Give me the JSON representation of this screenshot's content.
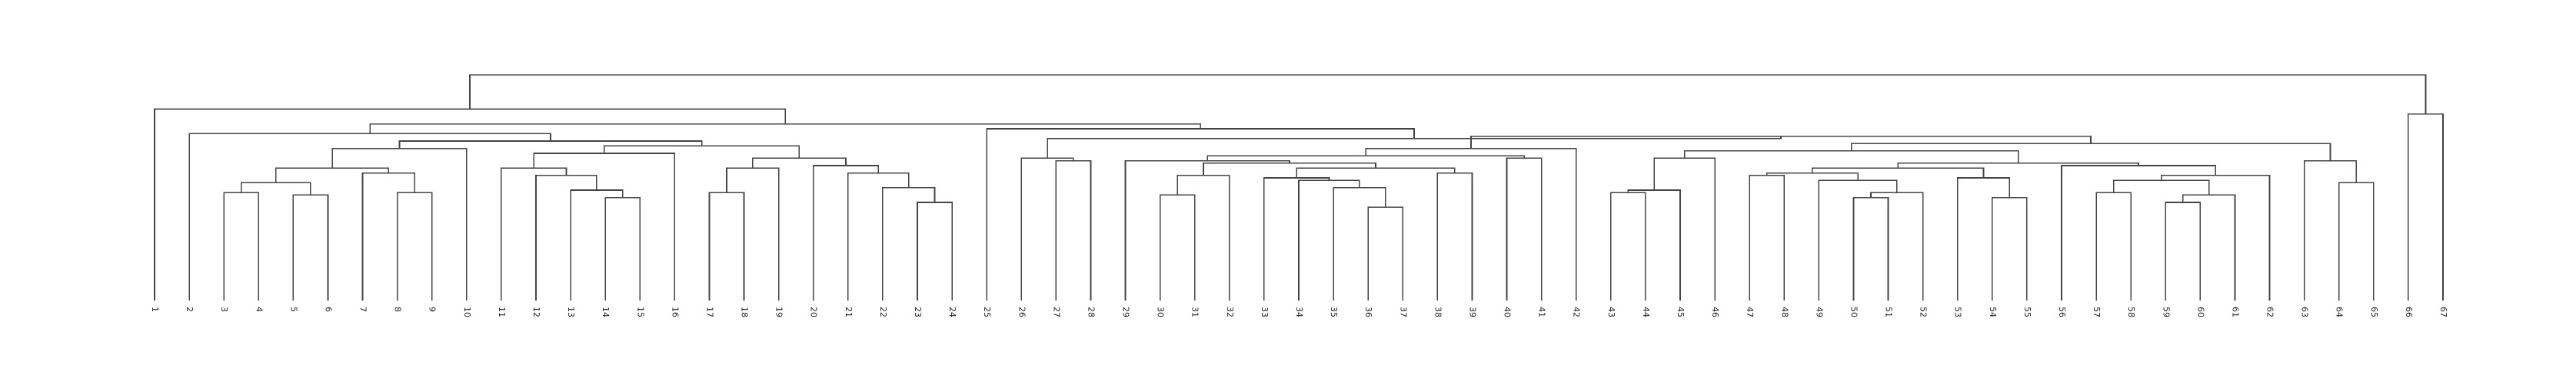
{
  "chart_data": {
    "type": "dendrogram",
    "title": "",
    "xlabel": "",
    "ylabel": "",
    "axis_visible": false,
    "grid": false,
    "leaf_order": [
      "1",
      "2",
      "3",
      "4",
      "5",
      "6",
      "7",
      "8",
      "9",
      "10",
      "11",
      "12",
      "13",
      "14",
      "15",
      "16",
      "17",
      "18",
      "19",
      "20",
      "21",
      "22",
      "23",
      "24",
      "25",
      "26",
      "27",
      "28",
      "29",
      "30",
      "31",
      "32",
      "33",
      "34",
      "35",
      "36",
      "37",
      "38",
      "39",
      "40",
      "41",
      "42",
      "43",
      "44",
      "45",
      "46",
      "47",
      "48",
      "49",
      "50",
      "51",
      "52",
      "53",
      "54",
      "55",
      "56",
      "57",
      "58",
      "59",
      "60",
      "61",
      "62",
      "63",
      "64",
      "65",
      "66",
      "67"
    ],
    "ylim": [
      0,
      100
    ],
    "merges": [
      {
        "a": "L5",
        "b": "L6",
        "h": 43
      },
      {
        "a": "L3",
        "b": "L4",
        "h": 44
      },
      {
        "a": "M1",
        "b": "M2",
        "h": 48
      },
      {
        "a": "L8",
        "b": "L9",
        "h": 44
      },
      {
        "a": "L7",
        "b": "M4",
        "h": 52
      },
      {
        "a": "M3",
        "b": "M5",
        "h": 54
      },
      {
        "a": "M6",
        "b": "L10",
        "h": 62
      },
      {
        "a": "L14",
        "b": "L15",
        "h": 42
      },
      {
        "a": "L13",
        "b": "M8",
        "h": 45
      },
      {
        "a": "L12",
        "b": "M9",
        "h": 51
      },
      {
        "a": "L11",
        "b": "M10",
        "h": 54
      },
      {
        "a": "M11",
        "b": "L16",
        "h": 60
      },
      {
        "a": "L17",
        "b": "L18",
        "h": 44
      },
      {
        "a": "M13",
        "b": "L19",
        "h": 54
      },
      {
        "a": "L23",
        "b": "L24",
        "h": 40
      },
      {
        "a": "L22",
        "b": "M15",
        "h": 46
      },
      {
        "a": "L21",
        "b": "M16",
        "h": 52
      },
      {
        "a": "L20",
        "b": "M17",
        "h": 55
      },
      {
        "a": "M14",
        "b": "M18",
        "h": 58
      },
      {
        "a": "M12",
        "b": "M19",
        "h": 63
      },
      {
        "a": "M7",
        "b": "M20",
        "h": 65
      },
      {
        "a": "M21",
        "b": "M22_dummy",
        "h": 0
      },
      {
        "a": "L36",
        "b": "L37",
        "h": 38
      },
      {
        "a": "L35",
        "b": "M23",
        "h": 46
      },
      {
        "a": "L34",
        "b": "M24",
        "h": 49
      },
      {
        "a": "L33",
        "b": "M25",
        "h": 50
      },
      {
        "a": "L30",
        "b": "L31",
        "h": 43
      },
      {
        "a": "M27",
        "b": "L32",
        "h": 51
      },
      {
        "a": "L38",
        "b": "L39",
        "h": 52
      },
      {
        "a": "M26",
        "b": "M29",
        "h": 54
      },
      {
        "a": "M28",
        "b": "M30",
        "h": 56
      },
      {
        "a": "L29",
        "b": "M31",
        "h": 57
      },
      {
        "a": "L40",
        "b": "L41",
        "h": 58
      },
      {
        "a": "M32",
        "b": "M33",
        "h": 59
      },
      {
        "a": "M34",
        "b": "L42",
        "h": 62
      },
      {
        "a": "L27",
        "b": "L28",
        "h": 57
      },
      {
        "a": "L26",
        "b": "M36",
        "h": 58
      },
      {
        "a": "L43",
        "b": "L44",
        "h": 44
      },
      {
        "a": "M38",
        "b": "L45",
        "h": 45
      },
      {
        "a": "M39",
        "b": "L46",
        "h": 58
      },
      {
        "a": "L50",
        "b": "L51",
        "h": 42
      },
      {
        "a": "M41",
        "b": "L52",
        "h": 44
      },
      {
        "a": "L49",
        "b": "M42",
        "h": 49
      },
      {
        "a": "L47",
        "b": "L48",
        "h": 51
      },
      {
        "a": "M44",
        "b": "M43",
        "h": 52
      },
      {
        "a": "L54",
        "b": "L55",
        "h": 42
      },
      {
        "a": "L53",
        "b": "M46",
        "h": 50
      },
      {
        "a": "M45",
        "b": "M47",
        "h": 54
      },
      {
        "a": "L59",
        "b": "L60",
        "h": 40
      },
      {
        "a": "M49",
        "b": "L61",
        "h": 43
      },
      {
        "a": "L57",
        "b": "L58",
        "h": 44
      },
      {
        "a": "M51",
        "b": "M50",
        "h": 49
      },
      {
        "a": "M52",
        "b": "L62",
        "h": 51
      },
      {
        "a": "L56",
        "b": "M53",
        "h": 55
      },
      {
        "a": "M48",
        "b": "M54",
        "h": 56
      },
      {
        "a": "M40",
        "b": "M55",
        "h": 61
      },
      {
        "a": "L64",
        "b": "L65",
        "h": 48
      },
      {
        "a": "L63",
        "b": "M57",
        "h": 57
      },
      {
        "a": "M56",
        "b": "M58",
        "h": 64
      },
      {
        "a": "M35",
        "b": "M59",
        "h": 67
      },
      {
        "a": "M37",
        "b": "M60",
        "h": 66
      },
      {
        "a": "L66",
        "b": "L67",
        "h": 76
      },
      {
        "a": "L2",
        "b": "M21",
        "h": 68
      },
      {
        "a": "L25",
        "b": "M61",
        "h": 70
      },
      {
        "a": "M63",
        "b": "M64",
        "h": 72
      },
      {
        "a": "L1",
        "b": "M65",
        "h": 78
      },
      {
        "a": "M66",
        "b": "M62",
        "h": 92
      }
    ]
  }
}
